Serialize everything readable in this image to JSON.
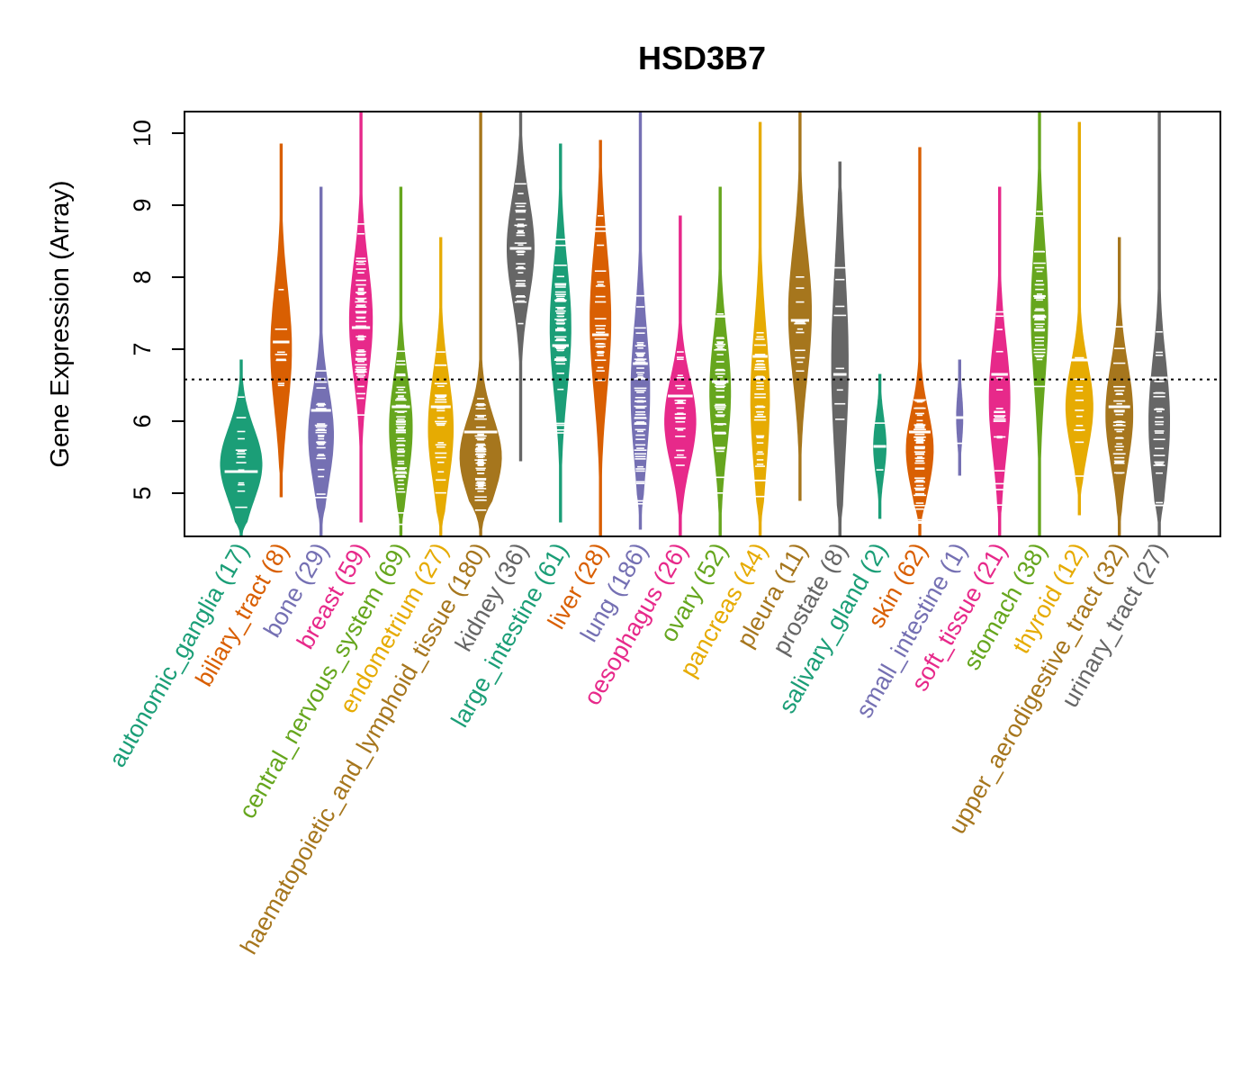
{
  "chart_data": {
    "type": "violin",
    "title": "HSD3B7",
    "ylabel": "Gene Expression (Array)",
    "xlabel": "",
    "ylim": [
      4.4,
      10.3
    ],
    "yticks": [
      5,
      6,
      7,
      8,
      9,
      10
    ],
    "reference_line": 6.58,
    "categories": [
      {
        "label": "autonomic_ganglia (17)",
        "color": "#1B9E77",
        "min": 4.4,
        "max": 6.85,
        "median": 5.3,
        "mode": 5.4,
        "spread": 0.5,
        "width": 1.0
      },
      {
        "label": "biliary_tract (8)",
        "color": "#D95F02",
        "min": 4.95,
        "max": 9.85,
        "median": 7.1,
        "mode": 7.0,
        "spread": 0.85,
        "width": 0.5
      },
      {
        "label": "bone (29)",
        "color": "#7570B3",
        "min": 4.4,
        "max": 9.25,
        "median": 6.15,
        "mode": 5.8,
        "spread": 0.65,
        "width": 0.6
      },
      {
        "label": "breast (59)",
        "color": "#E7298A",
        "min": 4.6,
        "max": 10.3,
        "median": 7.3,
        "mode": 7.4,
        "spread": 0.8,
        "width": 0.55
      },
      {
        "label": "central_nervous_system (69)",
        "color": "#66A61E",
        "min": 4.4,
        "max": 9.25,
        "median": 6.2,
        "mode": 5.9,
        "spread": 0.7,
        "width": 0.55
      },
      {
        "label": "endometrium (27)",
        "color": "#E6AB02",
        "min": 4.4,
        "max": 8.55,
        "median": 6.2,
        "mode": 5.9,
        "spread": 0.75,
        "width": 0.6
      },
      {
        "label": "haematopoietic_and_lymphoid_tissue (180)",
        "color": "#A6761D",
        "min": 4.4,
        "max": 10.3,
        "median": 5.85,
        "mode": 5.5,
        "spread": 0.55,
        "width": 1.0
      },
      {
        "label": "kidney (36)",
        "color": "#666666",
        "min": 5.45,
        "max": 10.3,
        "median": 8.4,
        "mode": 8.4,
        "spread": 0.7,
        "width": 0.65
      },
      {
        "label": "large_intestine (61)",
        "color": "#1B9E77",
        "min": 4.6,
        "max": 9.85,
        "median": 7.05,
        "mode": 7.3,
        "spread": 0.9,
        "width": 0.5
      },
      {
        "label": "liver (28)",
        "color": "#D95F02",
        "min": 4.4,
        "max": 9.9,
        "median": 7.2,
        "mode": 7.4,
        "spread": 1.0,
        "width": 0.5
      },
      {
        "label": "lung (186)",
        "color": "#7570B3",
        "min": 4.5,
        "max": 10.3,
        "median": 6.8,
        "mode": 6.4,
        "spread": 0.95,
        "width": 0.45
      },
      {
        "label": "oesophagus (26)",
        "color": "#E7298A",
        "min": 4.4,
        "max": 8.85,
        "median": 6.35,
        "mode": 6.0,
        "spread": 0.6,
        "width": 0.75
      },
      {
        "label": "ovary (52)",
        "color": "#66A61E",
        "min": 4.4,
        "max": 9.25,
        "median": 6.55,
        "mode": 6.4,
        "spread": 0.8,
        "width": 0.5
      },
      {
        "label": "pancreas (44)",
        "color": "#E6AB02",
        "min": 4.4,
        "max": 10.15,
        "median": 6.9,
        "mode": 6.3,
        "spread": 1.0,
        "width": 0.45
      },
      {
        "label": "pleura (11)",
        "color": "#A6761D",
        "min": 4.9,
        "max": 10.3,
        "median": 7.4,
        "mode": 7.5,
        "spread": 0.9,
        "width": 0.55
      },
      {
        "label": "prostate (8)",
        "color": "#666666",
        "min": 4.4,
        "max": 9.6,
        "median": 6.65,
        "mode": 6.8,
        "spread": 1.3,
        "width": 0.4
      },
      {
        "label": "salivary_gland (2)",
        "color": "#1B9E77",
        "min": 4.65,
        "max": 6.65,
        "median": 5.65,
        "mode": 5.65,
        "spread": 0.4,
        "width": 0.3
      },
      {
        "label": "skin (62)",
        "color": "#D95F02",
        "min": 4.4,
        "max": 9.8,
        "median": 5.85,
        "mode": 5.6,
        "spread": 0.55,
        "width": 0.65
      },
      {
        "label": "small_intestine (1)",
        "color": "#7570B3",
        "min": 5.25,
        "max": 6.85,
        "median": 6.05,
        "mode": 6.05,
        "spread": 0.35,
        "width": 0.15
      },
      {
        "label": "soft_tissue (21)",
        "color": "#E7298A",
        "min": 4.4,
        "max": 9.25,
        "median": 6.65,
        "mode": 6.3,
        "spread": 0.8,
        "width": 0.5
      },
      {
        "label": "stomach (38)",
        "color": "#66A61E",
        "min": 4.4,
        "max": 10.3,
        "median": 7.45,
        "mode": 7.5,
        "spread": 1.0,
        "width": 0.4
      },
      {
        "label": "thyroid (12)",
        "color": "#E6AB02",
        "min": 4.7,
        "max": 10.15,
        "median": 6.85,
        "mode": 6.2,
        "spread": 0.6,
        "width": 0.65
      },
      {
        "label": "upper_aerodigestive_tract (32)",
        "color": "#A6761D",
        "min": 4.4,
        "max": 8.55,
        "median": 6.2,
        "mode": 6.1,
        "spread": 0.7,
        "width": 0.65
      },
      {
        "label": "urinary_tract (27)",
        "color": "#666666",
        "min": 4.4,
        "max": 10.3,
        "median": 6.6,
        "mode": 6.0,
        "spread": 0.85,
        "width": 0.5
      }
    ]
  }
}
